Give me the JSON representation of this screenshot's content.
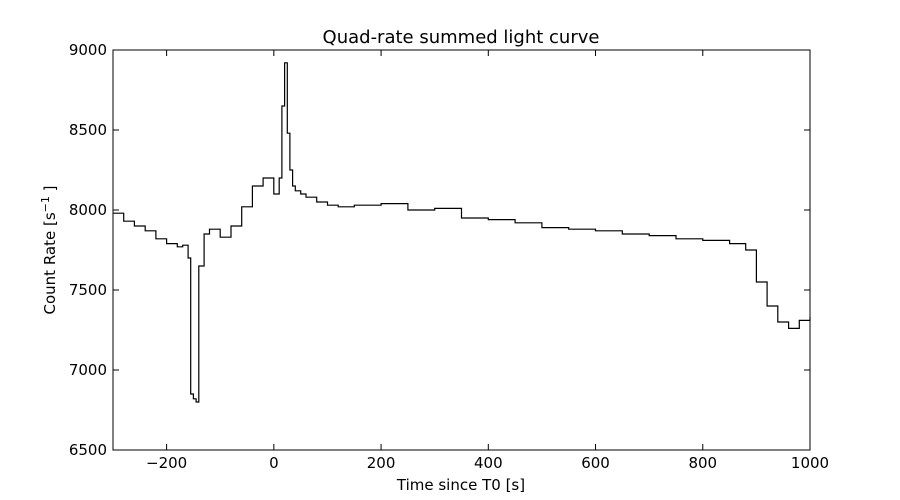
{
  "chart_data": {
    "type": "line",
    "drawstyle": "steps",
    "title": "Quad-rate summed light curve",
    "xlabel": "Time since T0 [s]",
    "ylabel": "Count Rate [s",
    "ylabel_superscript": "−1",
    "ylabel_suffix": " ]",
    "xlim": [
      -300,
      1000
    ],
    "ylim": [
      6500,
      9000
    ],
    "xticks": [
      -200,
      0,
      200,
      400,
      600,
      800,
      1000
    ],
    "xtick_labels": [
      "−200",
      "0",
      "200",
      "400",
      "600",
      "800",
      "1000"
    ],
    "yticks": [
      6500,
      7000,
      7500,
      8000,
      8500,
      9000
    ],
    "ytick_labels": [
      "6500",
      "7000",
      "7500",
      "8000",
      "8500",
      "9000"
    ],
    "grid": false,
    "legend": false,
    "line_color": "#000000",
    "series": [
      {
        "x": [
          -300,
          -280,
          -260,
          -240,
          -220,
          -200,
          -180,
          -170,
          -160,
          -155,
          -150,
          -145,
          -140,
          -130,
          -120,
          -100,
          -80,
          -60,
          -40,
          -20,
          0,
          10,
          15,
          20,
          25,
          30,
          35,
          40,
          50,
          60,
          80,
          100,
          120,
          150,
          200,
          250,
          300,
          350,
          400,
          450,
          500,
          550,
          600,
          650,
          700,
          750,
          800,
          850,
          880,
          900,
          920,
          940,
          960,
          980,
          1000
        ],
        "y": [
          7980,
          7930,
          7900,
          7870,
          7820,
          7790,
          7770,
          7780,
          7700,
          6850,
          6820,
          6800,
          7650,
          7850,
          7880,
          7830,
          7900,
          8020,
          8150,
          8200,
          8100,
          8200,
          8650,
          8920,
          8480,
          8250,
          8150,
          8120,
          8100,
          8080,
          8050,
          8030,
          8020,
          8030,
          8040,
          8000,
          8010,
          7950,
          7940,
          7920,
          7890,
          7880,
          7870,
          7850,
          7840,
          7820,
          7810,
          7790,
          7750,
          7550,
          7400,
          7300,
          7260,
          7310,
          7330
        ]
      }
    ]
  }
}
